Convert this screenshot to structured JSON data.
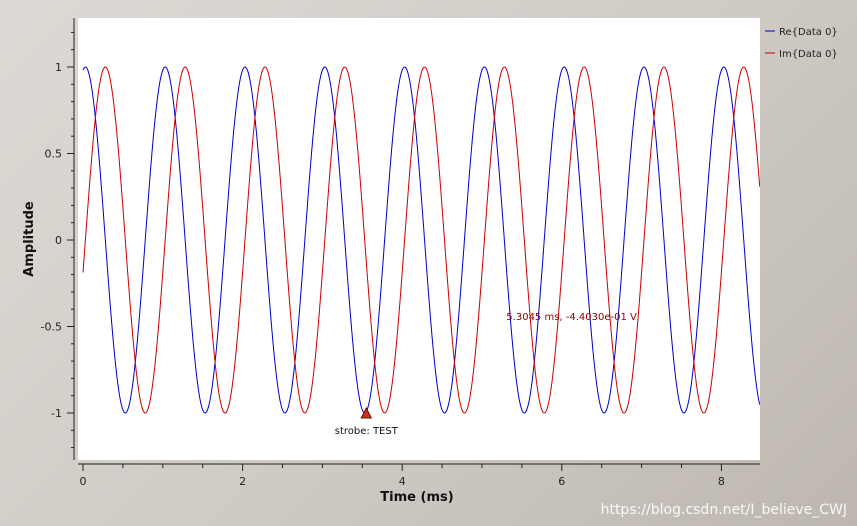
{
  "chart_data": {
    "type": "line",
    "title": "",
    "xlabel": "Time (ms)",
    "ylabel": "Amplitude",
    "xlim": [
      0,
      8.5
    ],
    "ylim": [
      -1.25,
      1.25
    ],
    "x_ticks": [
      0,
      2,
      4,
      6,
      8
    ],
    "x_tick_labels": [
      "0",
      "2",
      "4",
      "6",
      "8"
    ],
    "y_ticks": [
      1,
      0.5,
      0,
      -0.5,
      -1
    ],
    "y_tick_labels": [
      "1",
      "0.5",
      "0",
      "-0.5",
      "-1"
    ],
    "grid": false,
    "legend_position": "top-right",
    "series": [
      {
        "name": "Re{Data 0}",
        "color": "#0000cc",
        "frequency_khz": 1.0,
        "phase_ms": 0.03,
        "wave": "cosine",
        "amplitude": 1
      },
      {
        "name": "Im{Data 0}",
        "color": "#cc0000",
        "frequency_khz": 1.0,
        "phase_ms": 0.28,
        "wave": "cosine",
        "amplitude": 1
      }
    ],
    "annotations": [
      {
        "id": "cursor",
        "text": "5.3045 ms, -4.4030e-01 V",
        "x": 5.3045,
        "y": -0.4403
      },
      {
        "id": "strobe",
        "text": "strobe: TEST",
        "x": 3.55,
        "y": -1.0
      }
    ]
  },
  "watermark": "https://blog.csdn.net/I_believe_CWJ"
}
